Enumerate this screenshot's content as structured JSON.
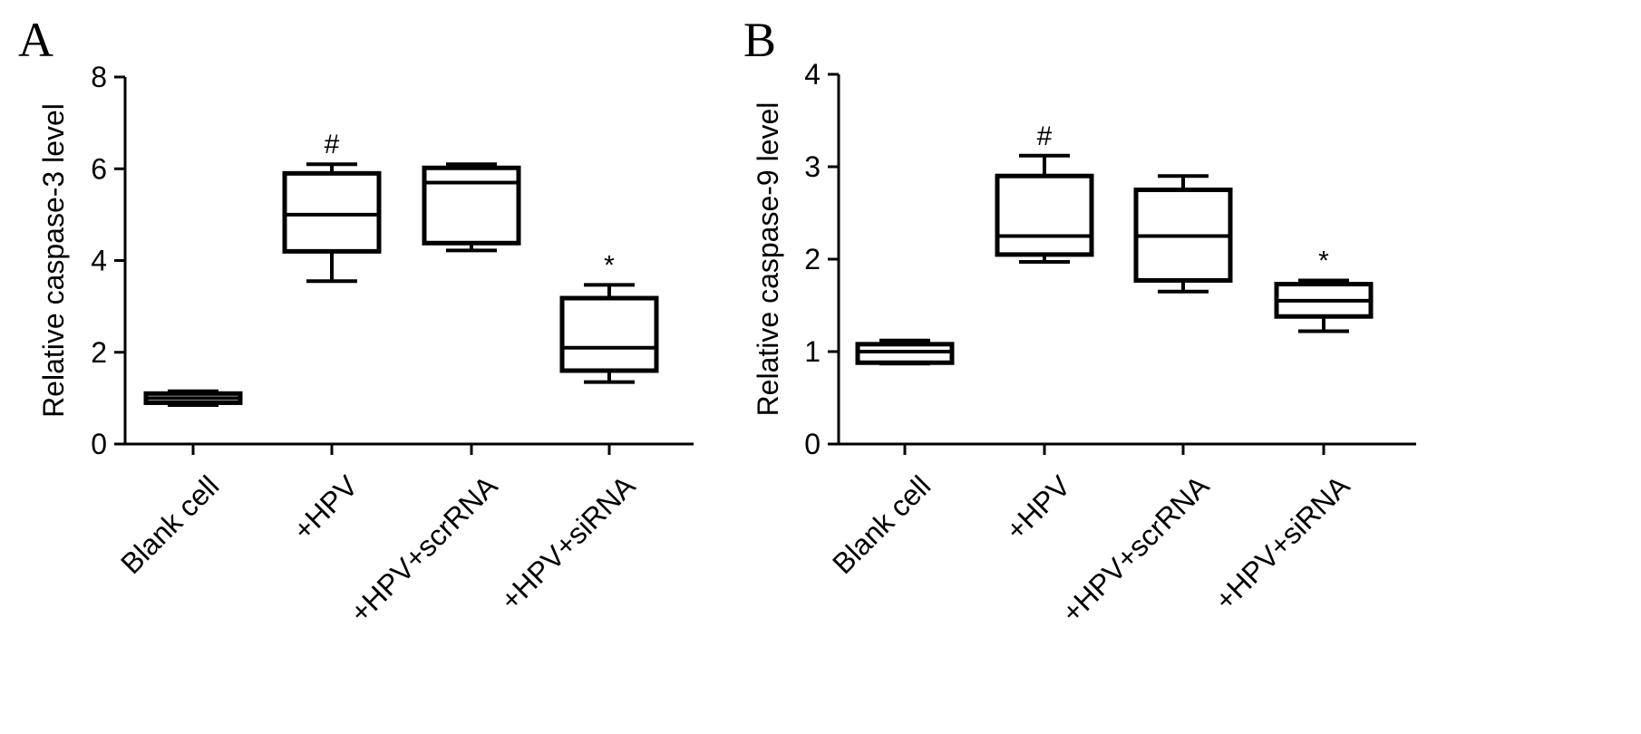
{
  "chart_data": [
    {
      "panel": "A",
      "type": "box",
      "ylabel": "Relative caspase-3 level",
      "ylim": [
        0,
        8
      ],
      "yticks": [
        0,
        2,
        4,
        6,
        8
      ],
      "categories": [
        "Blank cell",
        "+HPV",
        "+HPV+scrRNA",
        "+HPV+siRNA"
      ],
      "boxes": [
        {
          "min": 0.85,
          "q1": 0.9,
          "median": 1.0,
          "q3": 1.1,
          "max": 1.15,
          "annotation": ""
        },
        {
          "min": 3.55,
          "q1": 4.2,
          "median": 5.0,
          "q3": 5.9,
          "max": 6.1,
          "annotation": "#"
        },
        {
          "min": 4.22,
          "q1": 4.38,
          "median": 5.7,
          "q3": 6.02,
          "max": 6.1,
          "annotation": ""
        },
        {
          "min": 1.35,
          "q1": 1.6,
          "median": 2.1,
          "q3": 3.18,
          "max": 3.47,
          "annotation": "*"
        }
      ]
    },
    {
      "panel": "B",
      "type": "box",
      "ylabel": "Relative caspase-9 level",
      "ylim": [
        0,
        4
      ],
      "yticks": [
        0,
        1,
        2,
        3,
        4
      ],
      "categories": [
        "Blank cell",
        "+HPV",
        "+HPV+scrRNA",
        "+HPV+siRNA"
      ],
      "boxes": [
        {
          "min": 0.87,
          "q1": 0.88,
          "median": 1.0,
          "q3": 1.08,
          "max": 1.12,
          "annotation": ""
        },
        {
          "min": 1.97,
          "q1": 2.05,
          "median": 2.25,
          "q3": 2.9,
          "max": 3.12,
          "annotation": "#"
        },
        {
          "min": 1.65,
          "q1": 1.77,
          "median": 2.25,
          "q3": 2.75,
          "max": 2.9,
          "annotation": ""
        },
        {
          "min": 1.22,
          "q1": 1.38,
          "median": 1.55,
          "q3": 1.73,
          "max": 1.77,
          "annotation": "*"
        }
      ]
    }
  ]
}
